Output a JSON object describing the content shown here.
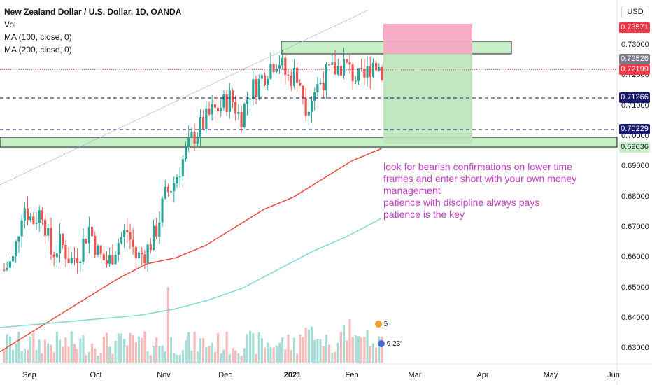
{
  "legend": {
    "symbol": "New Zealand Dollar / U.S. Dollar, 1D, OANDA",
    "vol": "Vol",
    "ma100": "MA (100, close, 0)",
    "ma200": "MA (200, close, 0)"
  },
  "currency": "USD",
  "price_axis": {
    "ticks": [
      "0.73000",
      "0.72000",
      "0.71000",
      "0.70000",
      "0.69000",
      "0.68000",
      "0.67000",
      "0.66000",
      "0.65000",
      "0.64000",
      "0.63000"
    ],
    "tags": [
      {
        "label": "0.73571",
        "color": "#f23645"
      },
      {
        "label": "0.72526",
        "color": "#787b86"
      },
      {
        "label": "0.72199",
        "color": "#f23645"
      },
      {
        "label": "0.71266",
        "color": "#1a1a6e"
      },
      {
        "label": "0.70229",
        "color": "#1a1a6e"
      },
      {
        "label": "0.69636",
        "color": "#c8f0c8",
        "text": "#131722"
      }
    ]
  },
  "time_axis": {
    "labels": [
      "Sep",
      "Oct",
      "Nov",
      "Dec",
      "2021",
      "Feb",
      "Mar",
      "Apr",
      "May",
      "Jun"
    ]
  },
  "annotation": {
    "lines": [
      "look for bearish confirmations on lower time",
      "frames and enter short with your own money",
      "management",
      "patience with discipline always pays",
      "patience is the key"
    ],
    "color": "#c43bc4"
  },
  "events": {
    "count": "5",
    "time": "9 23'"
  },
  "colors": {
    "up": "#26a69a",
    "down": "#ef5350",
    "ma100": "#e84a3c",
    "ma200": "#7fd6d6",
    "zone_fill": "#c8f0c8",
    "stop_fill": "#f7a8c4",
    "target_fill": "#b9e4b9"
  },
  "chart_data": {
    "type": "candlestick",
    "symbol": "NZDUSD",
    "y_range": [
      0.625,
      0.745
    ],
    "levels": [
      0.7357,
      0.7253,
      0.722,
      0.7127,
      0.7023,
      0.6964
    ],
    "close_path": [
      0.656,
      0.6595,
      0.678,
      0.672,
      0.676,
      0.661,
      0.665,
      0.659,
      0.662,
      0.67,
      0.661,
      0.658,
      0.665,
      0.669,
      0.66,
      0.662,
      0.668,
      0.68,
      0.685,
      0.693,
      0.7,
      0.704,
      0.708,
      0.71,
      0.713,
      0.706,
      0.715,
      0.718,
      0.723,
      0.726,
      0.719,
      0.721,
      0.71,
      0.716,
      0.72,
      0.722,
      0.724,
      0.72,
      0.718,
      0.725,
      0.722
    ],
    "ma100": [
      0.629,
      0.635,
      0.641,
      0.647,
      0.653,
      0.658,
      0.66,
      0.664,
      0.67,
      0.676,
      0.68,
      0.686,
      0.692,
      0.696
    ],
    "ma200": [
      0.637,
      0.638,
      0.639,
      0.64,
      0.641,
      0.643,
      0.646,
      0.65,
      0.656,
      0.662,
      0.667,
      0.673
    ]
  }
}
